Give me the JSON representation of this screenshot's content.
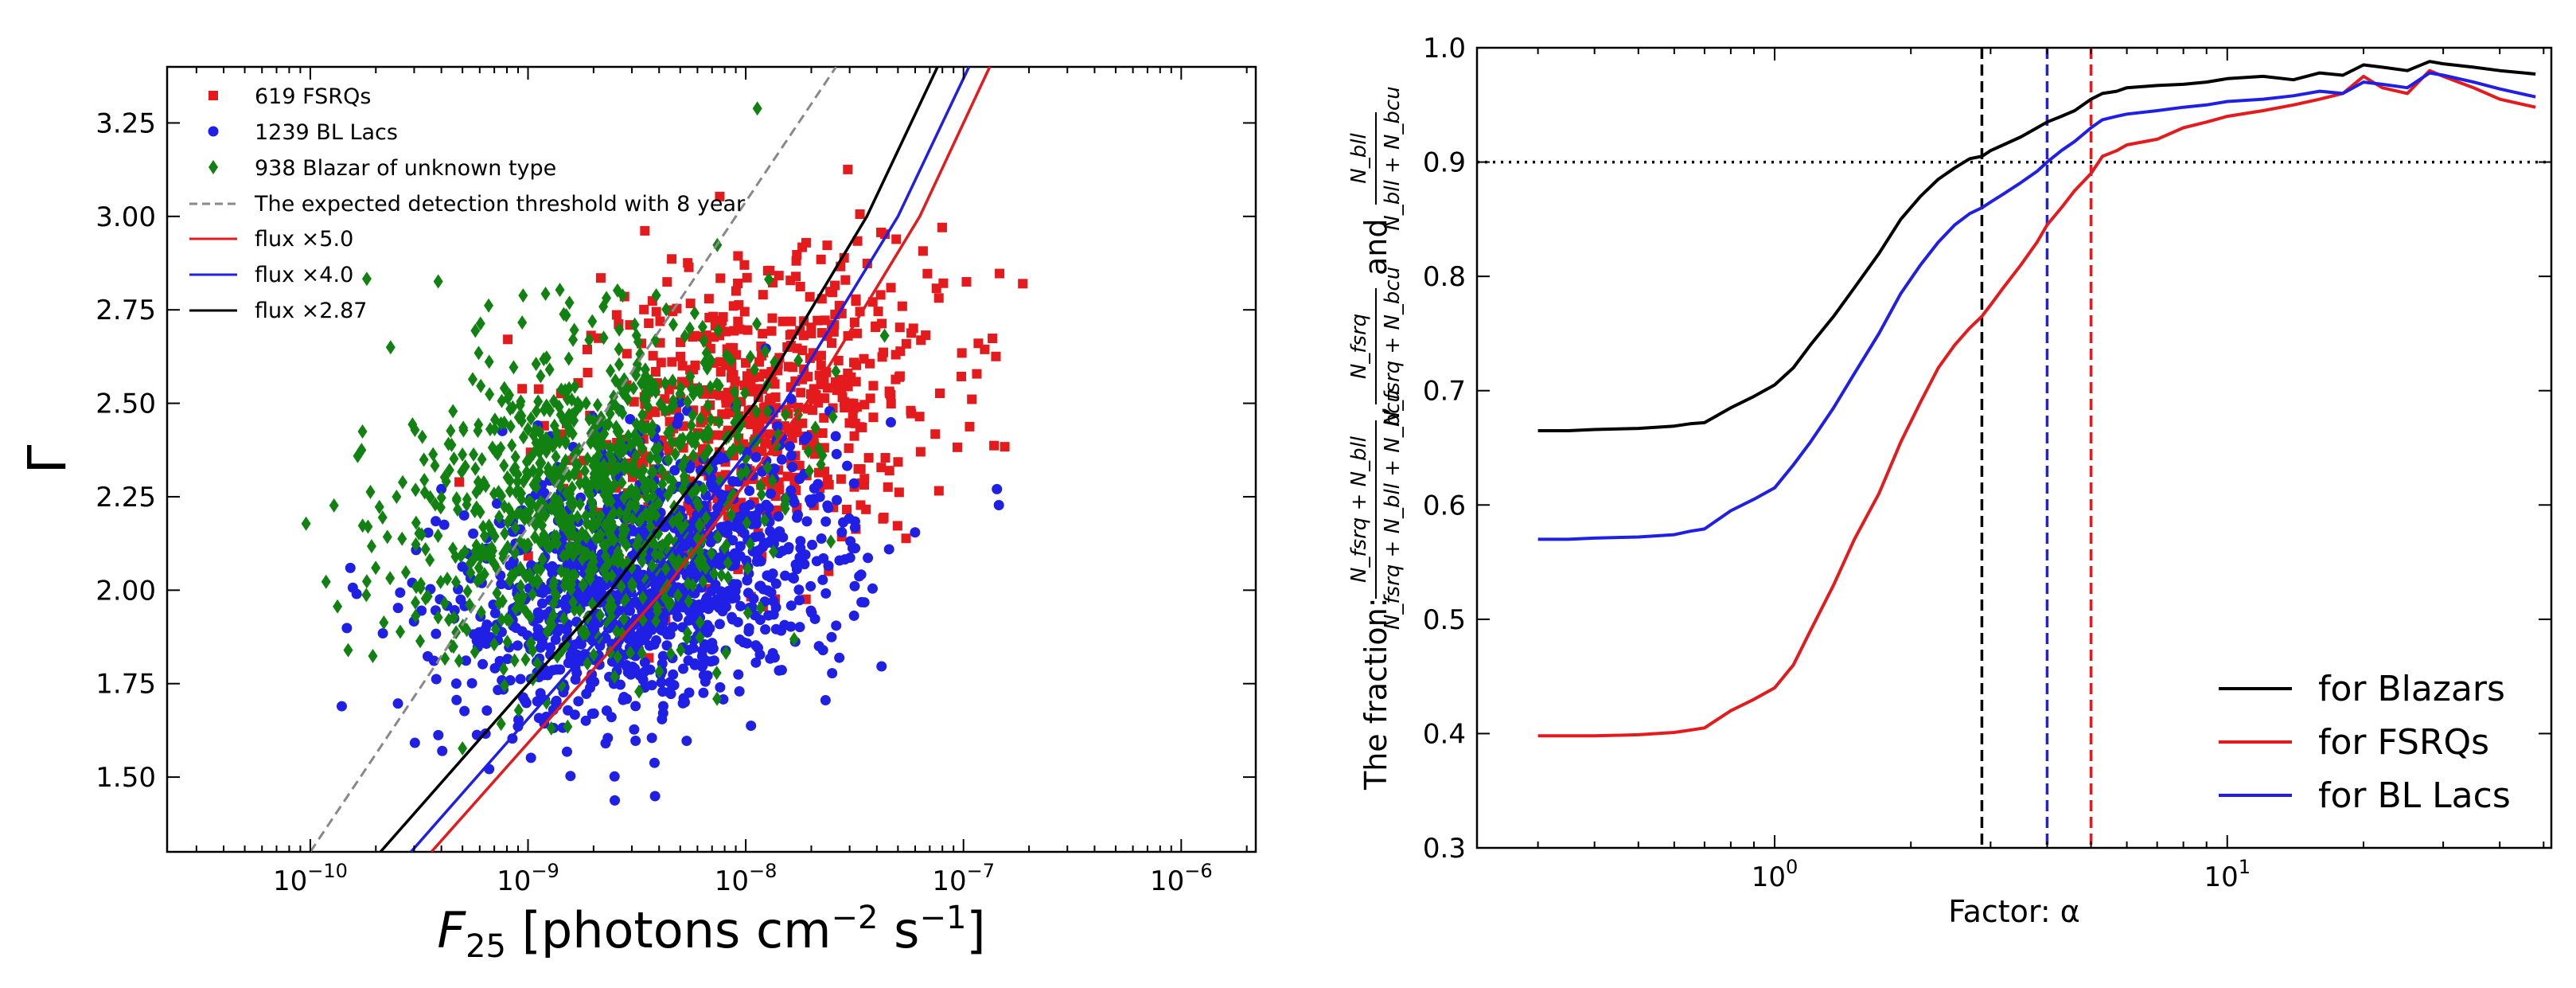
{
  "chart_data": [
    {
      "type": "scatter",
      "panel": "left",
      "xscale": "log",
      "xlim": [
        2.2e-11,
        2.2e-06
      ],
      "ylim": [
        1.3,
        3.4
      ],
      "xlabel": "F",
      "xlabel_sub": "25",
      "xlabel_rest": " [photons cm",
      "xlabel_exp1": "−2",
      "xlabel_mid": " s",
      "xlabel_exp2": "−1",
      "xlabel_end": "]",
      "ylabel": "Γ",
      "xtick_labels": [
        {
          "mantissa": "10",
          "exp": "−10",
          "value": 1e-10
        },
        {
          "mantissa": "10",
          "exp": "−9",
          "value": 1e-09
        },
        {
          "mantissa": "10",
          "exp": "−8",
          "value": 1e-08
        },
        {
          "mantissa": "10",
          "exp": "−7",
          "value": 1e-07
        },
        {
          "mantissa": "10",
          "exp": "−6",
          "value": 1e-06
        }
      ],
      "yticks": [
        1.5,
        1.75,
        2.0,
        2.25,
        2.5,
        2.75,
        3.0,
        3.25
      ],
      "ytick_labels": [
        "1.50",
        "1.75",
        "2.00",
        "2.25",
        "2.50",
        "2.75",
        "3.00",
        "3.25"
      ],
      "legend_position": "top-left",
      "legend": [
        {
          "label": "619 FSRQs",
          "marker": "square",
          "color": "#e41a1c"
        },
        {
          "label": "1239 BL Lacs",
          "marker": "circle",
          "color": "#1f1fe6"
        },
        {
          "label": "938 Blazar of unknown type",
          "marker": "diamond",
          "color": "#118211"
        },
        {
          "label": "The expected detection threshold with 8 year",
          "line": "dashed",
          "color": "#888888"
        },
        {
          "label": "flux ×5.0",
          "line": "solid",
          "color": "#e41a1c"
        },
        {
          "label": "flux ×4.0",
          "line": "solid",
          "color": "#1f1fe6"
        },
        {
          "label": "flux ×2.87",
          "line": "solid",
          "color": "#000000"
        }
      ],
      "series": [
        {
          "name": "619 FSRQs",
          "count": 619,
          "color": "#e41a1c",
          "marker": "square",
          "center_logF": -7.95,
          "center_gamma": 2.48,
          "spread_logF": 0.42,
          "spread_gamma": 0.2
        },
        {
          "name": "1239 BL Lacs",
          "count": 1239,
          "color": "#1f1fe6",
          "marker": "circle",
          "center_logF": -8.45,
          "center_gamma": 2.02,
          "spread_logF": 0.45,
          "spread_gamma": 0.17
        },
        {
          "name": "938 Blazar of unknown type",
          "count": 938,
          "color": "#118211",
          "marker": "diamond",
          "center_logF": -8.75,
          "center_gamma": 2.25,
          "spread_logF": 0.42,
          "spread_gamma": 0.22
        }
      ],
      "threshold_curves": [
        {
          "name": "The expected detection threshold with 8 year",
          "color": "#888888",
          "dash": true,
          "points": [
            [
              1e-10,
              1.3
            ],
            [
              2.6e-08,
              3.4
            ]
          ]
        },
        {
          "name": "flux ×2.87",
          "color": "#000000",
          "dash": false,
          "points": [
            [
              2.1e-10,
              1.3
            ],
            [
              2.4e-09,
              2.0
            ],
            [
              1.1e-08,
              2.5
            ],
            [
              3.6e-08,
              3.0
            ],
            [
              7.6e-08,
              3.4
            ]
          ]
        },
        {
          "name": "flux ×4.0",
          "color": "#1f1fe6",
          "dash": false,
          "points": [
            [
              2.9e-10,
              1.3
            ],
            [
              3.3e-09,
              2.0
            ],
            [
              1.5e-08,
              2.5
            ],
            [
              5e-08,
              3.0
            ],
            [
              1.06e-07,
              3.4
            ]
          ]
        },
        {
          "name": "flux ×5.0",
          "color": "#e41a1c",
          "dash": false,
          "points": [
            [
              3.6e-10,
              1.3
            ],
            [
              4.2e-09,
              2.0
            ],
            [
              1.9e-08,
              2.5
            ],
            [
              6.3e-08,
              3.0
            ],
            [
              1.32e-07,
              3.4
            ]
          ]
        }
      ]
    },
    {
      "type": "line",
      "panel": "right",
      "xscale": "log",
      "xlim": [
        0.22,
        52
      ],
      "ylim": [
        0.3,
        1.0
      ],
      "xlabel": "Factor: α",
      "ylabel_prefix": "The fraction:",
      "ylabel_frac1_num": "N_fsrq + N_bll",
      "ylabel_frac1_den": "N_fsrq + N_bll + N_bcu",
      "ylabel_frac2_num": "N_fsrq",
      "ylabel_frac2_den": "N_fsrq + N_bcu",
      "ylabel_and": "and",
      "ylabel_frac3_num": "N_bll",
      "ylabel_frac3_den": "N_bll + N_bcu",
      "xtick_labels": [
        {
          "mantissa": "10",
          "exp": "0",
          "value": 1
        },
        {
          "mantissa": "10",
          "exp": "1",
          "value": 10
        }
      ],
      "yticks": [
        0.3,
        0.4,
        0.5,
        0.6,
        0.7,
        0.8,
        0.9,
        1.0
      ],
      "ytick_labels": [
        "0.3",
        "0.4",
        "0.5",
        "0.6",
        "0.7",
        "0.8",
        "0.9",
        "1.0"
      ],
      "hline": {
        "y": 0.9,
        "style": "dotted",
        "color": "#000000"
      },
      "vlines": [
        {
          "x": 2.87,
          "color": "#000000"
        },
        {
          "x": 4.0,
          "color": "#1f1fe6"
        },
        {
          "x": 5.0,
          "color": "#e41a1c"
        }
      ],
      "legend_position": "bottom-right",
      "legend": [
        {
          "label": "for Blazars",
          "color": "#000000"
        },
        {
          "label": "for FSRQs",
          "color": "#e41a1c"
        },
        {
          "label": "for BL Lacs",
          "color": "#1f1fe6"
        }
      ],
      "x": [
        0.3,
        0.35,
        0.4,
        0.5,
        0.6,
        0.65,
        0.7,
        0.8,
        0.9,
        1.0,
        1.1,
        1.2,
        1.35,
        1.5,
        1.7,
        1.9,
        2.1,
        2.3,
        2.5,
        2.7,
        2.87,
        3.0,
        3.2,
        3.5,
        3.8,
        4.0,
        4.3,
        4.6,
        5.0,
        5.3,
        5.7,
        6.0,
        7.0,
        8.0,
        9.0,
        10.0,
        12.0,
        14.0,
        16.0,
        18.0,
        20.0,
        22.0,
        25.0,
        28.0,
        30.0,
        35.0,
        40.0,
        48.0
      ],
      "series": [
        {
          "name": "for Blazars",
          "color": "#000000",
          "values": [
            0.665,
            0.665,
            0.666,
            0.667,
            0.669,
            0.671,
            0.672,
            0.685,
            0.695,
            0.705,
            0.72,
            0.74,
            0.765,
            0.79,
            0.82,
            0.85,
            0.87,
            0.885,
            0.895,
            0.903,
            0.905,
            0.91,
            0.915,
            0.922,
            0.93,
            0.935,
            0.94,
            0.945,
            0.955,
            0.96,
            0.962,
            0.965,
            0.967,
            0.968,
            0.97,
            0.973,
            0.975,
            0.972,
            0.978,
            0.976,
            0.985,
            0.983,
            0.98,
            0.988,
            0.986,
            0.983,
            0.98,
            0.977
          ]
        },
        {
          "name": "for FSRQs",
          "color": "#e41a1c",
          "values": [
            0.398,
            0.398,
            0.398,
            0.399,
            0.401,
            0.403,
            0.405,
            0.42,
            0.43,
            0.44,
            0.46,
            0.49,
            0.53,
            0.57,
            0.61,
            0.655,
            0.69,
            0.72,
            0.74,
            0.755,
            0.765,
            0.775,
            0.79,
            0.81,
            0.83,
            0.845,
            0.86,
            0.875,
            0.89,
            0.905,
            0.91,
            0.915,
            0.92,
            0.93,
            0.935,
            0.94,
            0.945,
            0.95,
            0.955,
            0.96,
            0.975,
            0.965,
            0.96,
            0.98,
            0.975,
            0.965,
            0.955,
            0.948
          ]
        },
        {
          "name": "for BL Lacs",
          "color": "#1f1fe6",
          "values": [
            0.57,
            0.57,
            0.571,
            0.572,
            0.574,
            0.577,
            0.579,
            0.595,
            0.605,
            0.615,
            0.635,
            0.655,
            0.685,
            0.715,
            0.75,
            0.785,
            0.81,
            0.83,
            0.845,
            0.855,
            0.86,
            0.865,
            0.872,
            0.882,
            0.892,
            0.9,
            0.91,
            0.918,
            0.93,
            0.937,
            0.94,
            0.942,
            0.945,
            0.948,
            0.95,
            0.953,
            0.955,
            0.958,
            0.962,
            0.96,
            0.97,
            0.968,
            0.965,
            0.978,
            0.976,
            0.97,
            0.964,
            0.957
          ]
        }
      ]
    }
  ]
}
